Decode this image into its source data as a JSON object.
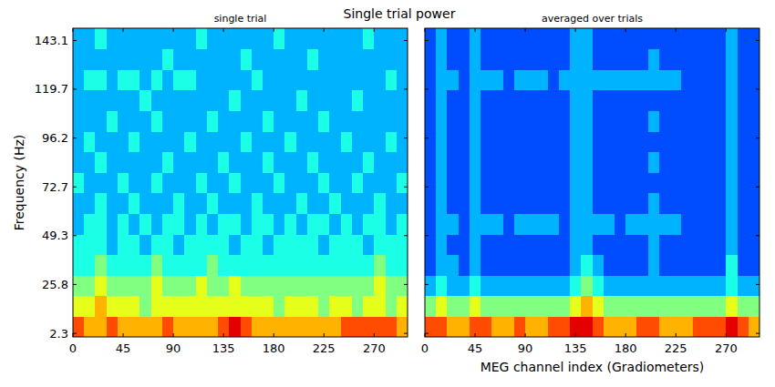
{
  "title": "Single trial power",
  "chart_data": [
    {
      "type": "heatmap",
      "title": "single trial",
      "y_label": "Frequency (Hz)",
      "xlim": [
        0,
        300
      ],
      "xticks": [
        0,
        45,
        90,
        135,
        180,
        225,
        270
      ],
      "ylim": [
        0.6,
        149
      ],
      "yticks": [
        2.3,
        25.8,
        49.3,
        72.7,
        96.2,
        119.7,
        143.1
      ],
      "tick_labels": true,
      "color_range": [
        0,
        10
      ],
      "cells": [
        [
          8,
          7,
          7,
          8,
          7,
          7,
          7,
          7,
          8,
          7,
          7,
          7,
          7,
          8,
          9,
          8,
          7,
          7,
          7,
          7,
          7,
          7,
          7,
          7,
          8,
          8,
          8,
          8,
          8,
          7
        ],
        [
          6,
          6,
          7,
          6,
          6,
          6,
          5,
          6,
          6,
          6,
          6,
          6,
          6,
          6,
          6,
          6,
          6,
          6,
          5,
          6,
          6,
          6,
          5,
          6,
          6,
          5,
          6,
          6,
          5,
          6
        ],
        [
          5,
          5,
          6,
          5,
          5,
          5,
          5,
          6,
          5,
          5,
          5,
          6,
          5,
          5,
          6,
          5,
          5,
          5,
          5,
          5,
          5,
          5,
          5,
          5,
          5,
          5,
          5,
          6,
          5,
          5
        ],
        [
          4,
          4,
          5,
          4,
          4,
          4,
          4,
          5,
          4,
          4,
          4,
          4,
          5,
          4,
          4,
          4,
          4,
          4,
          4,
          4,
          4,
          4,
          4,
          4,
          4,
          4,
          4,
          5,
          4,
          4
        ],
        [
          4,
          4,
          4,
          3,
          4,
          4,
          3,
          4,
          4,
          3,
          4,
          4,
          4,
          4,
          3,
          4,
          4,
          3,
          4,
          4,
          4,
          4,
          3,
          4,
          4,
          4,
          3,
          4,
          4,
          4
        ],
        [
          3,
          4,
          4,
          3,
          4,
          3,
          4,
          3,
          4,
          4,
          3,
          4,
          3,
          4,
          4,
          3,
          4,
          4,
          3,
          4,
          3,
          4,
          4,
          3,
          4,
          3,
          4,
          4,
          3,
          4
        ],
        [
          3,
          3,
          4,
          3,
          3,
          4,
          3,
          3,
          3,
          4,
          3,
          3,
          4,
          3,
          3,
          3,
          4,
          3,
          3,
          3,
          4,
          3,
          3,
          4,
          3,
          3,
          3,
          4,
          3,
          3
        ],
        [
          4,
          3,
          3,
          3,
          4,
          3,
          3,
          4,
          3,
          3,
          3,
          4,
          3,
          3,
          4,
          3,
          3,
          3,
          4,
          3,
          3,
          3,
          4,
          3,
          3,
          4,
          3,
          3,
          3,
          4
        ],
        [
          3,
          3,
          4,
          3,
          3,
          3,
          3,
          3,
          4,
          3,
          3,
          3,
          3,
          4,
          3,
          3,
          3,
          4,
          3,
          3,
          3,
          4,
          3,
          3,
          3,
          3,
          4,
          3,
          3,
          3
        ],
        [
          3,
          4,
          3,
          3,
          3,
          4,
          3,
          3,
          3,
          3,
          4,
          3,
          3,
          3,
          3,
          4,
          3,
          3,
          3,
          4,
          3,
          3,
          3,
          3,
          4,
          3,
          3,
          3,
          4,
          3
        ],
        [
          3,
          3,
          3,
          4,
          3,
          3,
          3,
          4,
          3,
          3,
          3,
          3,
          4,
          3,
          3,
          3,
          3,
          4,
          3,
          3,
          3,
          3,
          4,
          3,
          3,
          3,
          3,
          3,
          3,
          3
        ],
        [
          3,
          3,
          3,
          3,
          3,
          3,
          4,
          3,
          3,
          3,
          3,
          3,
          3,
          3,
          4,
          3,
          3,
          3,
          3,
          3,
          4,
          3,
          3,
          3,
          3,
          4,
          3,
          3,
          3,
          3
        ],
        [
          3,
          4,
          4,
          3,
          4,
          4,
          3,
          4,
          3,
          4,
          4,
          3,
          3,
          3,
          3,
          3,
          4,
          3,
          3,
          3,
          3,
          3,
          3,
          3,
          3,
          3,
          3,
          3,
          4,
          3
        ],
        [
          3,
          3,
          3,
          3,
          3,
          3,
          3,
          3,
          4,
          3,
          3,
          3,
          3,
          3,
          3,
          4,
          3,
          3,
          3,
          3,
          3,
          4,
          3,
          3,
          3,
          3,
          3,
          3,
          3,
          3
        ],
        [
          3,
          3,
          4,
          3,
          3,
          3,
          3,
          3,
          3,
          3,
          3,
          4,
          3,
          3,
          3,
          3,
          3,
          3,
          4,
          3,
          3,
          3,
          3,
          3,
          3,
          3,
          4,
          3,
          3,
          3
        ]
      ]
    },
    {
      "type": "heatmap",
      "title": "averaged over trials",
      "x_label": "MEG channel index (Gradiometers)",
      "xlim": [
        0,
        300
      ],
      "xticks": [
        0,
        45,
        90,
        135,
        180,
        225,
        270
      ],
      "ylim": [
        0.6,
        149
      ],
      "yticks": [
        2.3,
        25.8,
        49.3,
        72.7,
        96.2,
        119.7,
        143.1
      ],
      "tick_labels": "x",
      "color_range": [
        0,
        10
      ],
      "cells": [
        [
          8,
          8,
          7,
          7,
          8,
          8,
          7,
          7,
          8,
          7,
          7,
          8,
          8,
          9,
          9,
          8,
          7,
          7,
          7,
          8,
          8,
          7,
          7,
          7,
          8,
          8,
          8,
          9,
          8,
          7
        ],
        [
          5,
          6,
          5,
          5,
          6,
          5,
          5,
          5,
          5,
          5,
          5,
          5,
          5,
          6,
          7,
          6,
          5,
          5,
          5,
          5,
          5,
          5,
          5,
          5,
          5,
          5,
          5,
          6,
          5,
          5
        ],
        [
          3,
          4,
          3,
          3,
          4,
          3,
          3,
          3,
          3,
          3,
          3,
          3,
          3,
          4,
          5,
          4,
          3,
          3,
          3,
          3,
          3,
          3,
          3,
          3,
          3,
          3,
          3,
          4,
          3,
          3
        ],
        [
          2,
          3,
          3,
          2,
          3,
          2,
          2,
          2,
          2,
          2,
          2,
          2,
          2,
          3,
          4,
          3,
          2,
          2,
          2,
          2,
          3,
          2,
          2,
          2,
          2,
          2,
          2,
          4,
          2,
          2
        ],
        [
          2,
          3,
          2,
          2,
          3,
          2,
          2,
          2,
          2,
          2,
          2,
          2,
          2,
          3,
          3,
          2,
          2,
          2,
          2,
          2,
          3,
          2,
          2,
          2,
          2,
          2,
          2,
          3,
          2,
          2
        ],
        [
          2,
          3,
          3,
          2,
          3,
          3,
          3,
          2,
          3,
          3,
          3,
          3,
          2,
          3,
          3,
          3,
          3,
          2,
          3,
          3,
          3,
          3,
          3,
          2,
          2,
          2,
          2,
          3,
          2,
          2
        ],
        [
          2,
          3,
          2,
          2,
          3,
          2,
          2,
          2,
          2,
          2,
          2,
          2,
          2,
          3,
          3,
          2,
          2,
          2,
          2,
          2,
          3,
          2,
          2,
          2,
          2,
          2,
          2,
          3,
          2,
          2
        ],
        [
          2,
          3,
          2,
          2,
          3,
          2,
          2,
          2,
          2,
          2,
          2,
          2,
          2,
          3,
          3,
          2,
          2,
          2,
          2,
          2,
          2,
          2,
          2,
          2,
          2,
          2,
          2,
          3,
          2,
          2
        ],
        [
          2,
          3,
          2,
          2,
          3,
          2,
          2,
          2,
          2,
          2,
          2,
          2,
          2,
          3,
          3,
          2,
          2,
          2,
          2,
          2,
          3,
          2,
          2,
          2,
          2,
          2,
          2,
          3,
          2,
          2
        ],
        [
          2,
          3,
          2,
          2,
          3,
          2,
          2,
          2,
          2,
          2,
          2,
          2,
          2,
          3,
          3,
          2,
          2,
          2,
          2,
          2,
          2,
          2,
          2,
          2,
          2,
          2,
          2,
          3,
          2,
          2
        ],
        [
          2,
          3,
          2,
          2,
          3,
          2,
          2,
          2,
          2,
          2,
          2,
          2,
          2,
          3,
          3,
          2,
          2,
          2,
          2,
          2,
          3,
          2,
          2,
          2,
          2,
          2,
          2,
          3,
          2,
          2
        ],
        [
          2,
          3,
          2,
          2,
          3,
          2,
          2,
          2,
          2,
          2,
          2,
          2,
          2,
          3,
          3,
          2,
          2,
          2,
          2,
          2,
          2,
          2,
          2,
          2,
          2,
          2,
          2,
          3,
          2,
          2
        ],
        [
          2,
          3,
          3,
          2,
          3,
          3,
          3,
          2,
          3,
          3,
          3,
          2,
          3,
          3,
          3,
          3,
          3,
          3,
          3,
          3,
          3,
          3,
          3,
          2,
          2,
          2,
          2,
          3,
          2,
          2
        ],
        [
          2,
          3,
          2,
          2,
          3,
          2,
          2,
          2,
          2,
          2,
          2,
          2,
          2,
          3,
          3,
          2,
          2,
          2,
          2,
          2,
          3,
          2,
          2,
          2,
          2,
          2,
          2,
          3,
          2,
          2
        ],
        [
          2,
          3,
          2,
          2,
          3,
          2,
          2,
          2,
          2,
          2,
          2,
          2,
          2,
          3,
          3,
          2,
          2,
          2,
          2,
          2,
          2,
          2,
          2,
          2,
          2,
          2,
          2,
          3,
          2,
          2
        ]
      ]
    }
  ]
}
